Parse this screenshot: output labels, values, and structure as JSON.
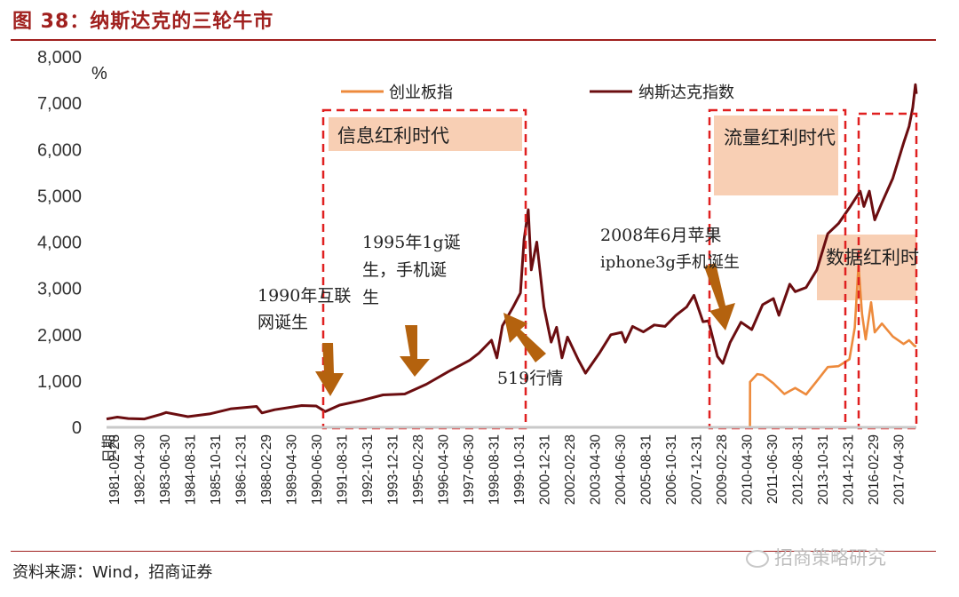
{
  "header": {
    "title": "图 38：纳斯达克的三轮牛市"
  },
  "footer": {
    "source": "资料来源：Wind，招商证券",
    "watermark": "招商策略研究"
  },
  "colors": {
    "accent": "#a0201e",
    "nasdaq": "#6b0d10",
    "chinext": "#ed8a3c",
    "box": "#e02020",
    "label_bg": "#f8cfb4"
  },
  "chart_data": {
    "type": "line",
    "ylabel": "%",
    "ylim": [
      0,
      8000
    ],
    "yticks": [
      "0",
      "1,000",
      "2,000",
      "3,000",
      "4,000",
      "5,000",
      "6,000",
      "7,000",
      "8,000"
    ],
    "xlabel": "日期",
    "xlim": [
      "1980-09-30",
      "2018-01-31"
    ],
    "xticks": [
      "1981-02-28",
      "1982-04-30",
      "1983-06-30",
      "1984-08-31",
      "1985-10-31",
      "1986-12-31",
      "1988-02-29",
      "1989-04-30",
      "1990-06-30",
      "1991-08-31",
      "1992-10-31",
      "1993-12-31",
      "1995-02-28",
      "1996-04-30",
      "1997-06-30",
      "1998-08-31",
      "1999-10-31",
      "2000-12-31",
      "2002-02-28",
      "2003-04-30",
      "2004-06-30",
      "2005-08-31",
      "2006-10-31",
      "2007-12-31",
      "2009-02-28",
      "2010-04-30",
      "2011-06-30",
      "2012-08-31",
      "2013-10-31",
      "2014-12-31",
      "2016-02-29",
      "2017-04-30"
    ],
    "legend": {
      "placement": "top",
      "entries": [
        "创业板指",
        "纳斯达克指数"
      ]
    },
    "series": [
      {
        "name": "纳斯达克指数",
        "color": "#6b0d10",
        "points": [
          [
            "1980-09-30",
            180
          ],
          [
            "1981-03-31",
            220
          ],
          [
            "1981-09-30",
            190
          ],
          [
            "1982-06-30",
            180
          ],
          [
            "1983-03-31",
            280
          ],
          [
            "1983-06-30",
            320
          ],
          [
            "1984-06-30",
            230
          ],
          [
            "1985-06-30",
            290
          ],
          [
            "1986-06-30",
            400
          ],
          [
            "1987-08-31",
            450
          ],
          [
            "1987-11-30",
            310
          ],
          [
            "1988-06-30",
            380
          ],
          [
            "1989-09-30",
            470
          ],
          [
            "1990-05-31",
            460
          ],
          [
            "1990-10-31",
            340
          ],
          [
            "1991-06-30",
            480
          ],
          [
            "1992-06-30",
            580
          ],
          [
            "1993-06-30",
            700
          ],
          [
            "1994-06-30",
            720
          ],
          [
            "1995-06-30",
            930
          ],
          [
            "1996-06-30",
            1200
          ],
          [
            "1997-06-30",
            1450
          ],
          [
            "1997-11-30",
            1600
          ],
          [
            "1998-06-30",
            1880
          ],
          [
            "1998-09-30",
            1500
          ],
          [
            "1998-12-31",
            2190
          ],
          [
            "1999-06-30",
            2600
          ],
          [
            "1999-10-31",
            2900
          ],
          [
            "1999-12-31",
            4060
          ],
          [
            "2000-03-10",
            4700
          ],
          [
            "2000-04-30",
            3400
          ],
          [
            "2000-07-31",
            4000
          ],
          [
            "2000-11-30",
            2600
          ],
          [
            "2001-03-31",
            1840
          ],
          [
            "2001-06-30",
            2160
          ],
          [
            "2001-09-30",
            1500
          ],
          [
            "2001-12-31",
            1950
          ],
          [
            "2002-06-30",
            1460
          ],
          [
            "2002-10-31",
            1170
          ],
          [
            "2003-06-30",
            1620
          ],
          [
            "2003-12-31",
            2000
          ],
          [
            "2004-06-30",
            2050
          ],
          [
            "2004-08-31",
            1840
          ],
          [
            "2004-12-31",
            2180
          ],
          [
            "2005-06-30",
            2060
          ],
          [
            "2005-12-31",
            2210
          ],
          [
            "2006-06-30",
            2180
          ],
          [
            "2006-12-31",
            2420
          ],
          [
            "2007-06-30",
            2600
          ],
          [
            "2007-10-31",
            2850
          ],
          [
            "2008-03-31",
            2280
          ],
          [
            "2008-06-30",
            2300
          ],
          [
            "2008-11-30",
            1530
          ],
          [
            "2009-02-28",
            1380
          ],
          [
            "2009-06-30",
            1830
          ],
          [
            "2009-12-31",
            2270
          ],
          [
            "2010-06-30",
            2110
          ],
          [
            "2010-12-31",
            2650
          ],
          [
            "2011-06-30",
            2780
          ],
          [
            "2011-09-30",
            2420
          ],
          [
            "2012-03-31",
            3090
          ],
          [
            "2012-06-30",
            2930
          ],
          [
            "2012-12-31",
            3020
          ],
          [
            "2013-06-30",
            3400
          ],
          [
            "2013-12-31",
            4180
          ],
          [
            "2014-06-30",
            4400
          ],
          [
            "2014-12-31",
            4740
          ],
          [
            "2015-06-30",
            5100
          ],
          [
            "2015-08-31",
            4770
          ],
          [
            "2015-11-30",
            5100
          ],
          [
            "2016-02-29",
            4480
          ],
          [
            "2016-06-30",
            4850
          ],
          [
            "2016-12-31",
            5380
          ],
          [
            "2017-06-30",
            6140
          ],
          [
            "2017-09-30",
            6500
          ],
          [
            "2017-11-30",
            6900
          ],
          [
            "2018-01-15",
            7400
          ],
          [
            "2018-01-31",
            7200
          ]
        ]
      },
      {
        "name": "创业板指",
        "color": "#ed8a3c",
        "points": [
          [
            "1980-09-30",
            0
          ],
          [
            "2010-05-31",
            0
          ],
          [
            "2010-06-01",
            980
          ],
          [
            "2010-09-30",
            1150
          ],
          [
            "2010-12-31",
            1130
          ],
          [
            "2011-06-30",
            950
          ],
          [
            "2011-12-31",
            720
          ],
          [
            "2012-06-30",
            850
          ],
          [
            "2012-12-31",
            710
          ],
          [
            "2013-06-30",
            1000
          ],
          [
            "2013-12-31",
            1300
          ],
          [
            "2014-06-30",
            1320
          ],
          [
            "2014-12-31",
            1470
          ],
          [
            "2015-03-31",
            2150
          ],
          [
            "2015-06-01",
            3500
          ],
          [
            "2015-07-31",
            2450
          ],
          [
            "2015-09-30",
            1900
          ],
          [
            "2015-12-31",
            2700
          ],
          [
            "2016-02-29",
            2050
          ],
          [
            "2016-06-30",
            2240
          ],
          [
            "2016-12-31",
            1960
          ],
          [
            "2017-06-30",
            1800
          ],
          [
            "2017-09-30",
            1880
          ],
          [
            "2017-12-31",
            1760
          ],
          [
            "2018-01-31",
            1750
          ]
        ]
      }
    ],
    "annotations": [
      {
        "text": "信息红利时代"
      },
      {
        "text": "流量红利时代"
      },
      {
        "text": "数据红利时"
      },
      {
        "text": "1990年互联",
        "text2": "网诞生"
      },
      {
        "text": "1995年1g诞",
        "text2": "生，手机诞",
        "text3": "生"
      },
      {
        "text": "519行情"
      },
      {
        "text": "2008年6月苹果",
        "text2": "iphone3g手机诞生"
      }
    ]
  }
}
